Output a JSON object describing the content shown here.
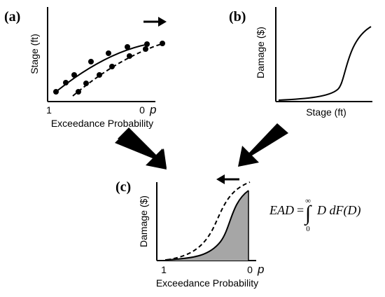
{
  "panels": {
    "a": {
      "label": "(a)",
      "ylabel": "Stage (ft)",
      "xlabel": "Exceedance Probability",
      "tick_left": "1",
      "tick_right": "0",
      "p_label": "p"
    },
    "b": {
      "label": "(b)",
      "ylabel": "Damage ($)",
      "xlabel": "Stage (ft)"
    },
    "c": {
      "label": "(c)",
      "ylabel": "Damage ($)",
      "xlabel": "Exceedance Probability",
      "tick_left": "1",
      "tick_right": "0",
      "p_label": "p"
    }
  },
  "equation": {
    "lhs": "EAD",
    "equals": "=",
    "upper_limit": "∞",
    "lower_limit": "0",
    "integral": "∫",
    "integrand": "D dF(D)"
  },
  "colors": {
    "shade": "#a6a6a6",
    "line": "#000000"
  }
}
